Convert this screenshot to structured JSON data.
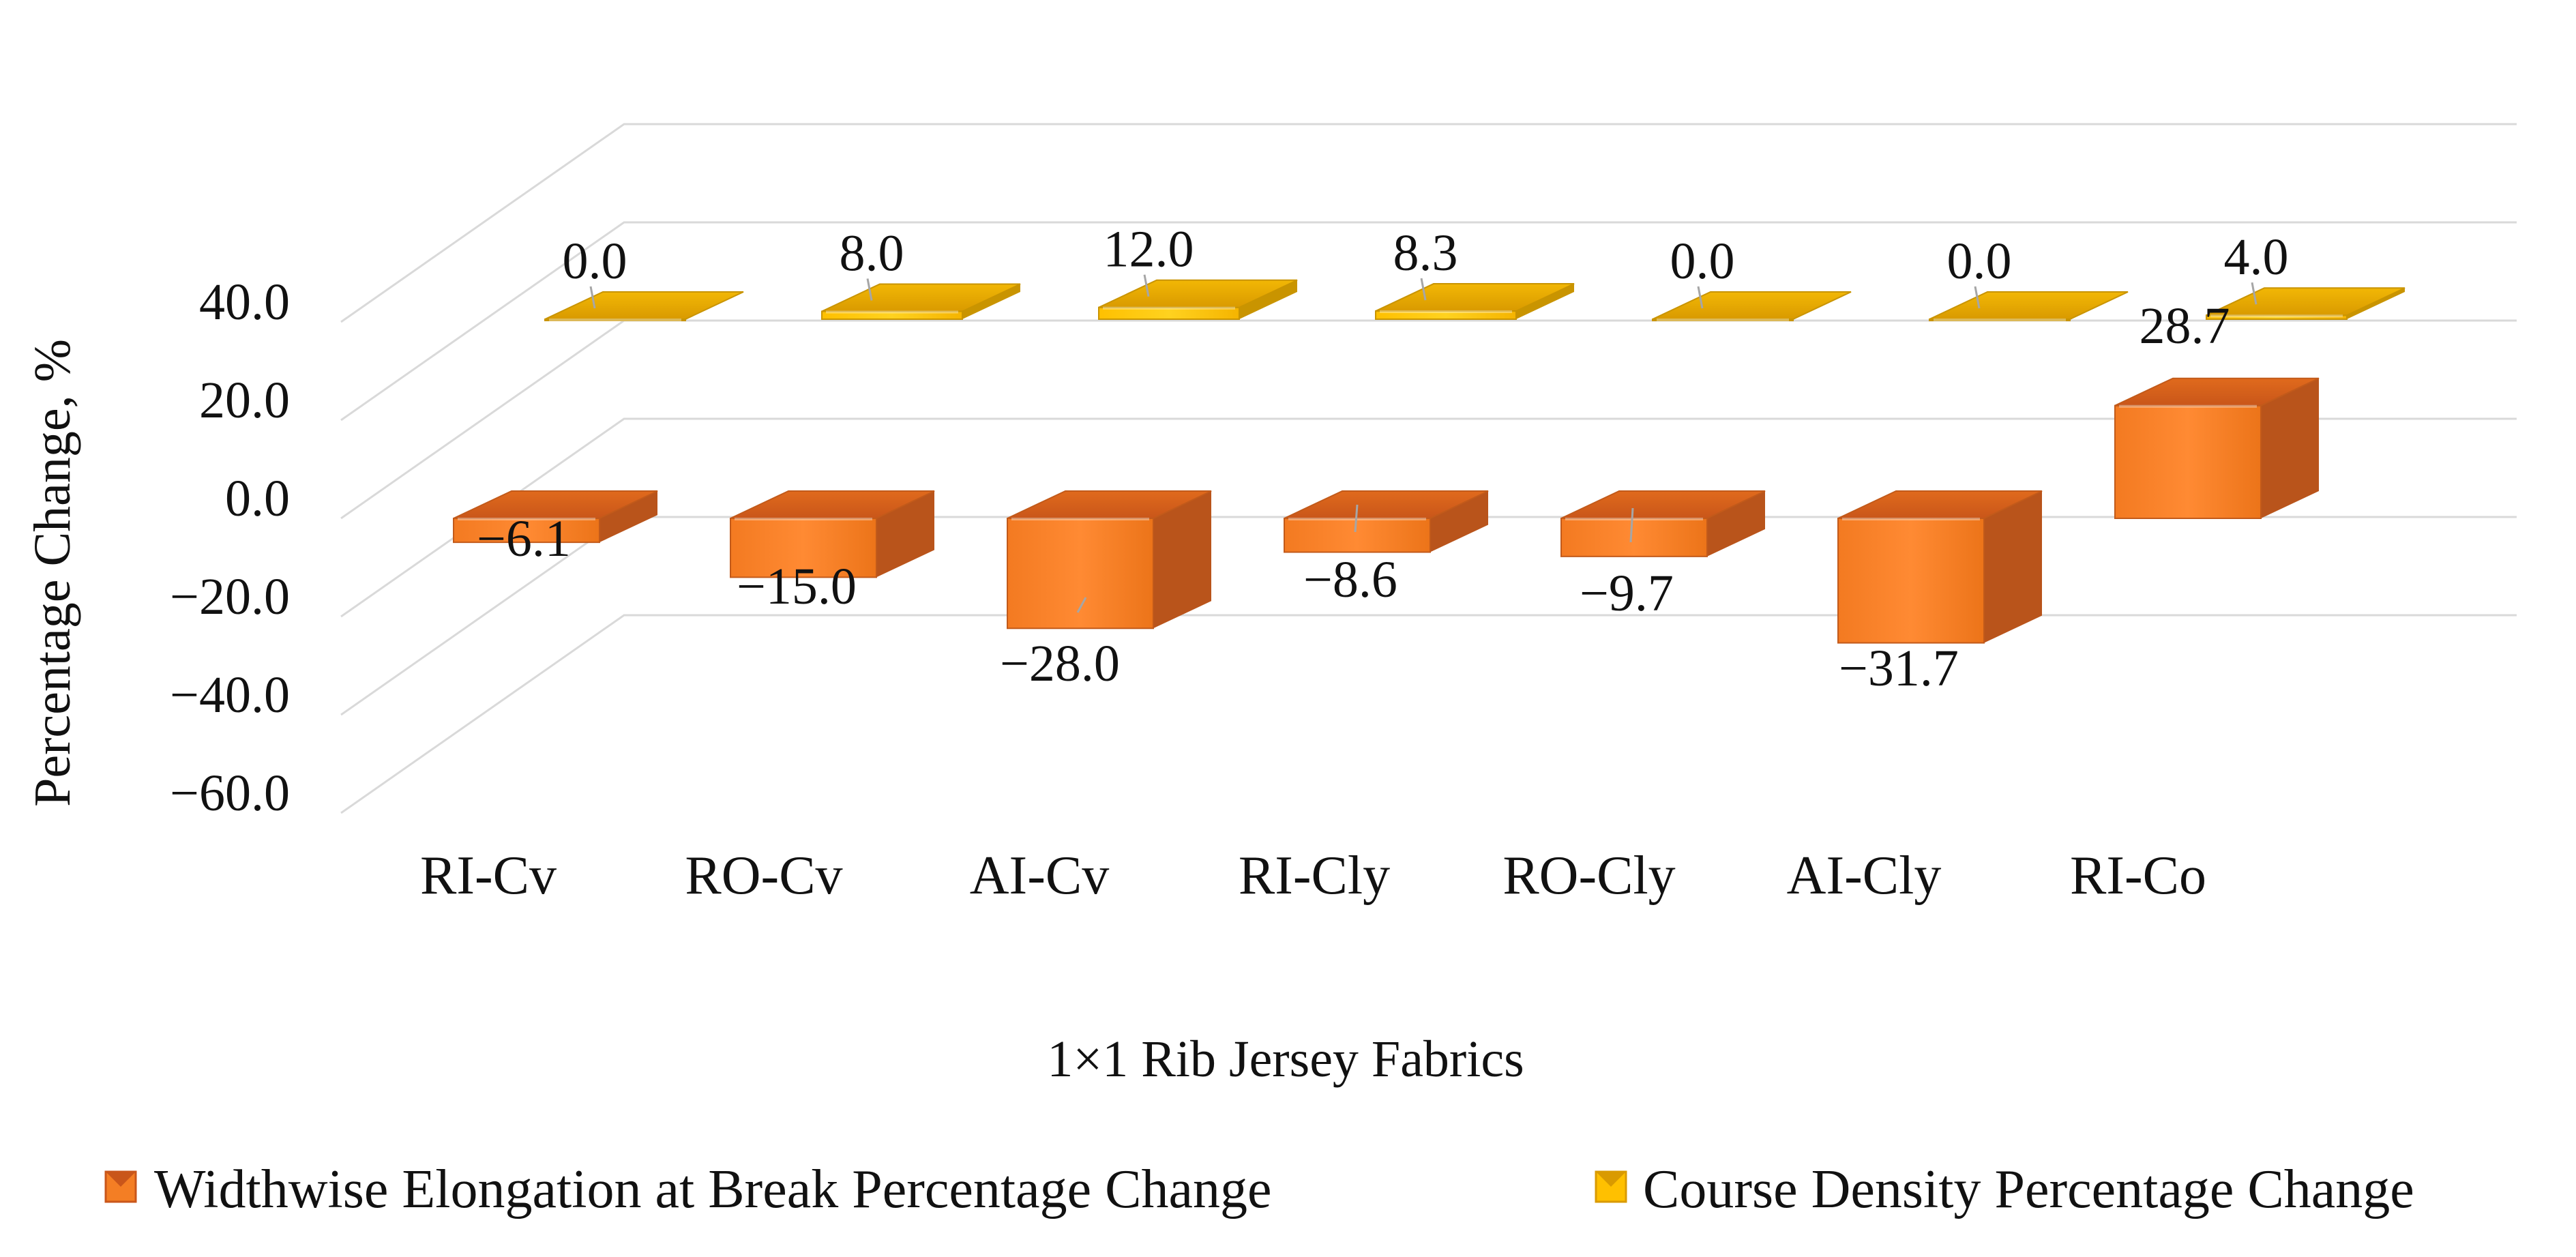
{
  "chart_data": {
    "type": "bar",
    "style": "3d-column",
    "categories": [
      "RI-Cv",
      "RO-Cv",
      "AI-Cv",
      "RI-Cly",
      "RO-Cly",
      "AI-Cly",
      "RI-Co"
    ],
    "series": [
      {
        "name": "Widthwise Elongation at Break Percentage Change",
        "color": "#F47E24",
        "values": [
          -6.1,
          -15.0,
          -28.0,
          -8.6,
          -9.7,
          -31.7,
          28.7
        ],
        "labels": [
          "−6.1",
          "−15.0",
          "−28.0",
          "−8.6",
          "−9.7",
          "−31.7",
          "28.7"
        ]
      },
      {
        "name": "Course Density Percentage Change",
        "color": "#FFC000",
        "values": [
          0.0,
          8.0,
          12.0,
          8.3,
          0.0,
          0.0,
          4.0
        ],
        "labels": [
          "0.0",
          "8.0",
          "12.0",
          "8.3",
          "0.0",
          "0.0",
          "4.0"
        ]
      }
    ],
    "ylim": [
      -60,
      40
    ],
    "yticks": [
      40,
      20,
      0,
      -20,
      -40,
      -60
    ],
    "ytick_labels": [
      "40.0",
      "20.0",
      "0.0",
      "−20.0",
      "−40.0",
      "−60.0"
    ],
    "ylabel": "Percentage Change, %",
    "xlabel": "1×1 Rib Jersey Fabrics",
    "legend_position": "bottom",
    "grid": true
  }
}
